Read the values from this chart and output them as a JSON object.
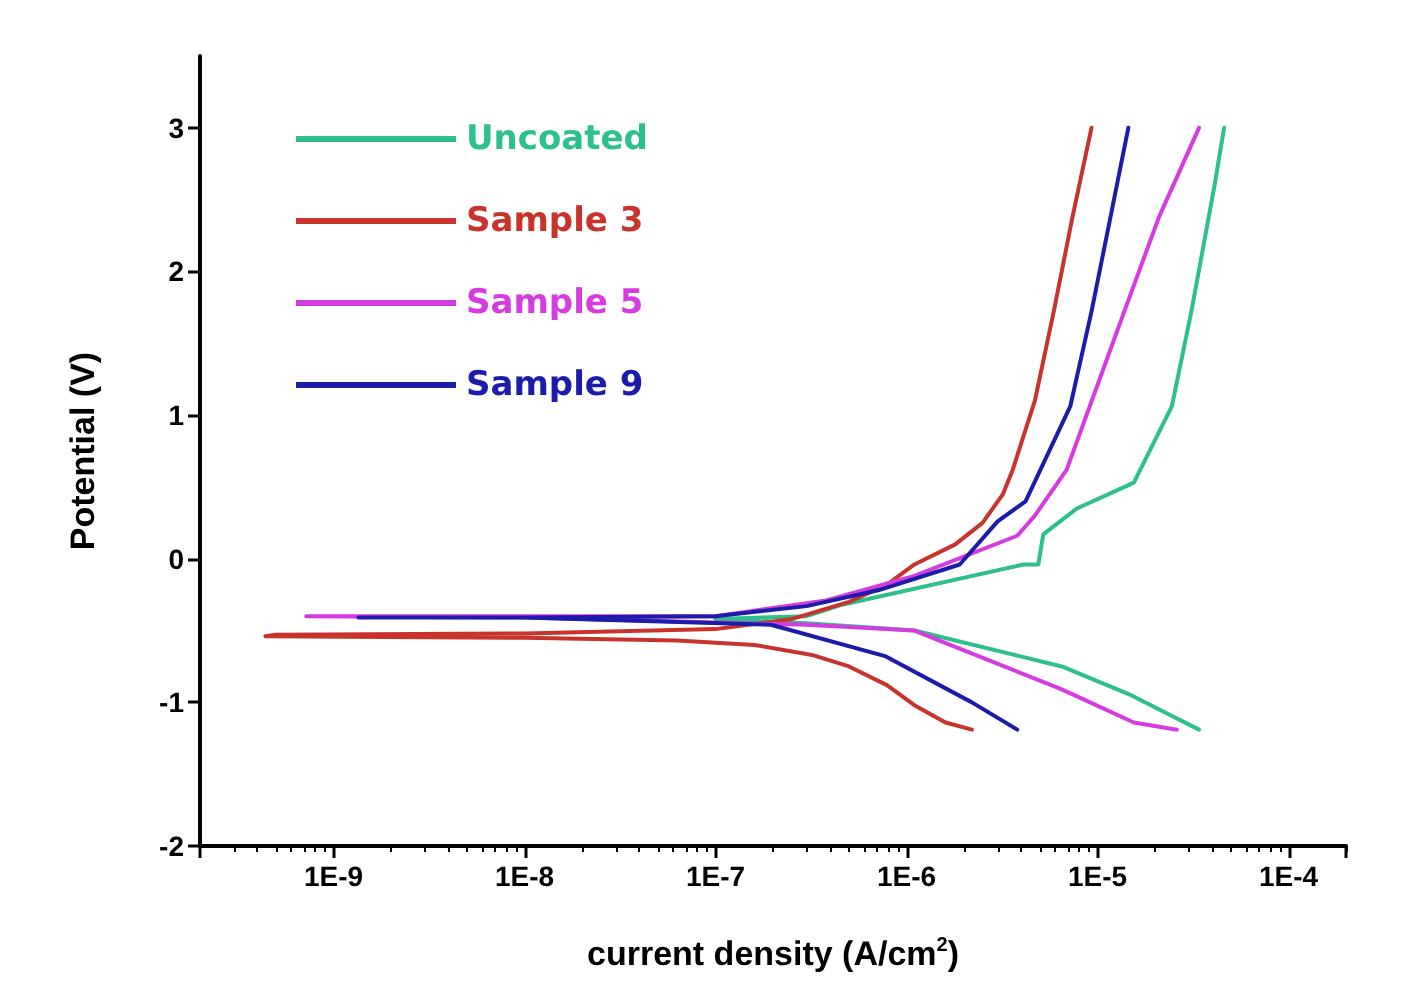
{
  "chart_data": {
    "type": "line",
    "xlabel": "current density (A/cm$^{2}$)",
    "ylabel": "Potential (V)",
    "log": "x",
    "xlim": [
      2e-10,
      0.0002
    ],
    "xticks": [
      {
        "value": 1e-09,
        "label": "1E-9"
      },
      {
        "value": 1e-08,
        "label": "1E-8"
      },
      {
        "value": 1e-07,
        "label": "1E-7"
      },
      {
        "value": 1e-06,
        "label": "1E-6"
      },
      {
        "value": 1e-05,
        "label": "1E-5"
      },
      {
        "value": 0.0001,
        "label": "1E-4"
      }
    ],
    "ylim": [
      -2,
      3.5
    ],
    "yticks": [
      -2,
      -1,
      0,
      1,
      2,
      3
    ],
    "grid": false,
    "legend": "top left",
    "marker": "none",
    "line_style": "solid",
    "series": [
      {
        "name": "Uncoated",
        "color": "#2dbf8c",
        "x": [
          3.4e-05,
          2.5e-05,
          1.5e-05,
          6.5e-06,
          1.1e-06,
          3e-07,
          1e-07,
          3e-07,
          4.6e-07,
          4.1e-06,
          4.9e-06,
          5.2e-06,
          7.8e-06,
          1.55e-05,
          2.45e-05,
          3.1e-05,
          4.1e-05,
          4.6e-05
        ],
        "values": [
          -1.19,
          -1.1,
          -0.95,
          -0.75,
          -0.5,
          -0.45,
          -0.42,
          -0.4,
          -0.32,
          -0.04,
          -0.04,
          0.17,
          0.35,
          0.53,
          1.06,
          1.72,
          2.6,
          3.0
        ]
      },
      {
        "name": "Sample 3",
        "color": "#c8342c",
        "x": [
          2.2e-06,
          1.6e-06,
          1.1e-06,
          7.9e-07,
          5e-07,
          3.2e-07,
          1.6e-07,
          6.3e-08,
          1e-08,
          4.4e-10,
          5e-10,
          1e-08,
          1e-07,
          2.5e-07,
          5e-07,
          7.9e-07,
          1.1e-06,
          1.8e-06,
          2.5e-06,
          3.2e-06,
          3.6e-06,
          4.7e-06,
          5.9e-06,
          7.4e-06,
          9.3e-06
        ],
        "values": [
          -1.19,
          -1.14,
          -1.02,
          -0.88,
          -0.75,
          -0.67,
          -0.6,
          -0.57,
          -0.55,
          -0.54,
          -0.53,
          -0.52,
          -0.49,
          -0.42,
          -0.3,
          -0.18,
          -0.04,
          0.1,
          0.25,
          0.45,
          0.62,
          1.1,
          1.72,
          2.38,
          3.0
        ]
      },
      {
        "name": "Sample 5",
        "color": "#d63be0",
        "x": [
          2.6e-05,
          1.55e-05,
          6.5e-06,
          1.1e-06,
          3e-07,
          1e-08,
          7.2e-10,
          1e-08,
          1e-07,
          3.8e-07,
          1.1e-06,
          3.8e-06,
          4.7e-06,
          6.9e-06,
          9.1e-06,
          1.38e-05,
          2.1e-05,
          3.4e-05
        ],
        "values": [
          -1.19,
          -1.14,
          -0.91,
          -0.5,
          -0.46,
          -0.41,
          -0.4,
          -0.4,
          -0.4,
          -0.29,
          -0.12,
          0.16,
          0.3,
          0.62,
          1.06,
          1.72,
          2.38,
          3.0
        ]
      },
      {
        "name": "Sample 9",
        "color": "#1c1caa",
        "x": [
          3.8e-06,
          2.2e-06,
          7.8e-07,
          1.95e-07,
          1e-08,
          1.35e-09,
          1e-08,
          1e-07,
          3e-07,
          7.1e-07,
          1.9e-06,
          3e-06,
          4.2e-06,
          7.2e-06,
          9.3e-06,
          1.17e-05,
          1.45e-05
        ],
        "values": [
          -1.19,
          -1.0,
          -0.68,
          -0.46,
          -0.41,
          -0.41,
          -0.41,
          -0.4,
          -0.33,
          -0.22,
          -0.04,
          0.26,
          0.4,
          1.06,
          1.72,
          2.38,
          3.0
        ]
      }
    ]
  }
}
